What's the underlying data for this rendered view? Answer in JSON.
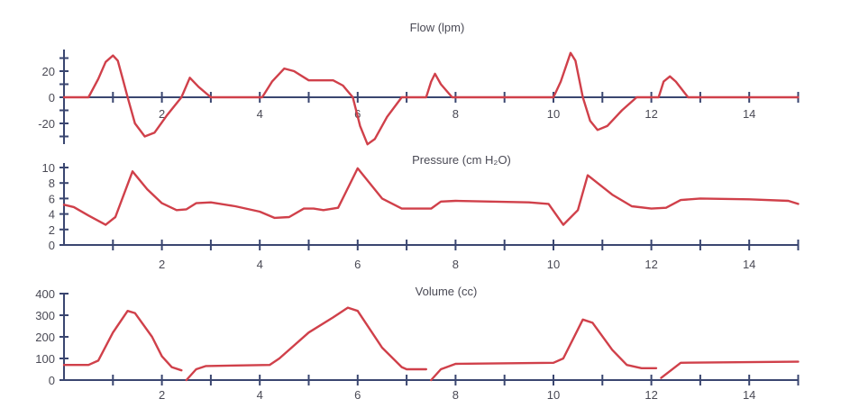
{
  "chart_data": [
    {
      "type": "line",
      "title": "Flow (lpm)",
      "xlim": [
        0,
        15
      ],
      "ylim": [
        -35,
        35
      ],
      "x_tick_labels": [
        "2",
        "4",
        "6",
        "8",
        "10",
        "12",
        "14"
      ],
      "y_tick_labels": [
        "20",
        "0",
        "-20"
      ],
      "y_minor_ticks": [
        30,
        20,
        10,
        0,
        -10,
        -20,
        -30
      ],
      "grid": false,
      "line_color": "#d0404a",
      "axis_color": "#3a4670",
      "segments": [
        [
          [
            0,
            0
          ],
          [
            0.5,
            0
          ],
          [
            0.7,
            14
          ],
          [
            0.85,
            27
          ],
          [
            1.0,
            32
          ],
          [
            1.1,
            28
          ],
          [
            1.2,
            14
          ],
          [
            1.3,
            0
          ],
          [
            1.45,
            -20
          ],
          [
            1.65,
            -30
          ],
          [
            1.85,
            -27
          ],
          [
            2.1,
            -14
          ],
          [
            2.4,
            0
          ],
          [
            2.57,
            15
          ],
          [
            2.75,
            8
          ],
          [
            3.0,
            0
          ],
          [
            4.05,
            0
          ],
          [
            4.25,
            12
          ],
          [
            4.5,
            22
          ],
          [
            4.7,
            20
          ],
          [
            5.0,
            13
          ],
          [
            5.5,
            13
          ],
          [
            5.7,
            9
          ],
          [
            5.9,
            0
          ],
          [
            6.05,
            -22
          ],
          [
            6.2,
            -36
          ],
          [
            6.35,
            -32
          ],
          [
            6.6,
            -15
          ],
          [
            6.9,
            0
          ],
          [
            7.4,
            0
          ],
          [
            7.5,
            12
          ],
          [
            7.58,
            18
          ],
          [
            7.7,
            10
          ],
          [
            7.93,
            0
          ],
          [
            10.0,
            0
          ],
          [
            10.15,
            12
          ],
          [
            10.35,
            34
          ],
          [
            10.45,
            28
          ],
          [
            10.6,
            0
          ],
          [
            10.75,
            -18
          ],
          [
            10.9,
            -25
          ],
          [
            11.1,
            -22
          ],
          [
            11.4,
            -10
          ],
          [
            11.7,
            0
          ],
          [
            12.15,
            0
          ],
          [
            12.25,
            12
          ],
          [
            12.38,
            16
          ],
          [
            12.5,
            12
          ],
          [
            12.75,
            0
          ],
          [
            15,
            0
          ]
        ]
      ]
    },
    {
      "type": "line",
      "title": "Pressure (cm H₂O)",
      "xlim": [
        0,
        15
      ],
      "ylim": [
        0,
        10
      ],
      "x_tick_labels": [
        "2",
        "4",
        "6",
        "8",
        "10",
        "12",
        "14"
      ],
      "y_tick_labels": [
        "10",
        "8",
        "6",
        "4",
        "2",
        "0"
      ],
      "grid": false,
      "line_color": "#d0404a",
      "axis_color": "#3a4670",
      "segments": [
        [
          [
            0,
            5.2
          ],
          [
            0.2,
            4.9
          ],
          [
            0.5,
            3.8
          ],
          [
            0.85,
            2.6
          ],
          [
            1.05,
            3.6
          ],
          [
            1.4,
            9.5
          ],
          [
            1.7,
            7.2
          ],
          [
            2.0,
            5.4
          ],
          [
            2.3,
            4.5
          ],
          [
            2.5,
            4.6
          ],
          [
            2.7,
            5.4
          ],
          [
            3.0,
            5.5
          ],
          [
            3.5,
            5.0
          ],
          [
            4.0,
            4.3
          ],
          [
            4.3,
            3.5
          ],
          [
            4.6,
            3.6
          ],
          [
            4.9,
            4.7
          ],
          [
            5.1,
            4.7
          ],
          [
            5.3,
            4.5
          ],
          [
            5.6,
            4.8
          ],
          [
            6.0,
            9.9
          ],
          [
            6.5,
            6.0
          ],
          [
            6.9,
            4.7
          ],
          [
            7.5,
            4.7
          ],
          [
            7.7,
            5.6
          ],
          [
            8.0,
            5.7
          ],
          [
            9.5,
            5.5
          ],
          [
            9.9,
            5.3
          ],
          [
            10.2,
            2.6
          ],
          [
            10.5,
            4.5
          ],
          [
            10.7,
            9.0
          ],
          [
            11.2,
            6.5
          ],
          [
            11.6,
            5.0
          ],
          [
            12.0,
            4.7
          ],
          [
            12.3,
            4.8
          ],
          [
            12.6,
            5.8
          ],
          [
            13.0,
            6.0
          ],
          [
            14.0,
            5.9
          ],
          [
            14.8,
            5.7
          ],
          [
            15,
            5.3
          ]
        ]
      ]
    },
    {
      "type": "line",
      "title": "Volume (cc)",
      "xlim": [
        0,
        15
      ],
      "ylim": [
        0,
        400
      ],
      "x_tick_labels": [
        "2",
        "4",
        "6",
        "8",
        "10",
        "12",
        "14"
      ],
      "y_tick_labels": [
        "400",
        "300",
        "200",
        "100",
        "0"
      ],
      "grid": false,
      "line_color": "#d0404a",
      "axis_color": "#3a4670",
      "segments": [
        [
          [
            0,
            70
          ],
          [
            0.5,
            70
          ],
          [
            0.7,
            90
          ],
          [
            1.0,
            220
          ],
          [
            1.3,
            320
          ],
          [
            1.45,
            310
          ],
          [
            1.8,
            200
          ],
          [
            2.0,
            110
          ],
          [
            2.2,
            60
          ],
          [
            2.4,
            45
          ]
        ],
        [
          [
            2.5,
            0
          ],
          [
            2.7,
            50
          ],
          [
            2.9,
            65
          ],
          [
            4.2,
            70
          ],
          [
            4.4,
            100
          ],
          [
            5.0,
            220
          ],
          [
            5.5,
            290
          ],
          [
            5.8,
            335
          ],
          [
            6.0,
            320
          ],
          [
            6.5,
            150
          ],
          [
            6.9,
            60
          ],
          [
            7.0,
            50
          ],
          [
            7.4,
            50
          ]
        ],
        [
          [
            7.5,
            0
          ],
          [
            7.7,
            50
          ],
          [
            8.0,
            75
          ],
          [
            10.0,
            80
          ],
          [
            10.2,
            100
          ],
          [
            10.6,
            280
          ],
          [
            10.8,
            265
          ],
          [
            11.2,
            140
          ],
          [
            11.5,
            70
          ],
          [
            11.8,
            55
          ],
          [
            12.1,
            55
          ]
        ],
        [
          [
            12.2,
            10
          ],
          [
            12.6,
            80
          ],
          [
            15,
            85
          ]
        ]
      ]
    }
  ]
}
